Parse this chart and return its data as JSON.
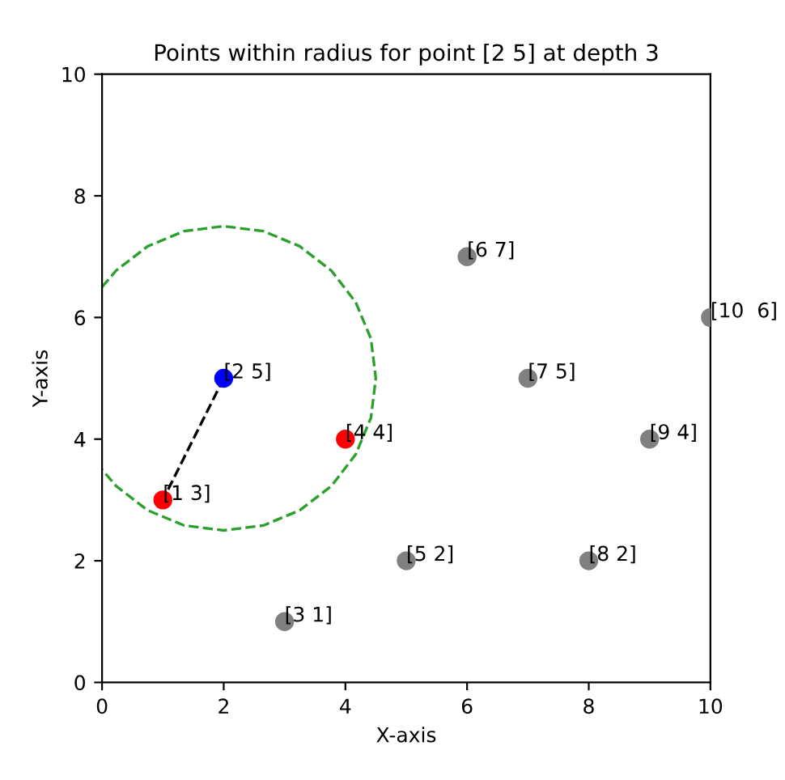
{
  "chart_data": {
    "type": "scatter",
    "title": "Points within radius for point [2 5] at depth 3",
    "xlabel": "X-axis",
    "ylabel": "Y-axis",
    "xlim": [
      0,
      10
    ],
    "ylim": [
      0,
      10
    ],
    "xticks": [
      0,
      2,
      4,
      6,
      8,
      10
    ],
    "yticks": [
      0,
      2,
      4,
      6,
      8,
      10
    ],
    "grid": false,
    "marker": "circle",
    "series": [
      {
        "color": "#808080",
        "x": [
          3,
          5,
          6,
          7,
          8,
          9,
          10
        ],
        "values": [
          1,
          2,
          7,
          5,
          2,
          4,
          6
        ]
      },
      {
        "color": "#ff0000",
        "x": [
          1,
          4
        ],
        "values": [
          3,
          4
        ]
      },
      {
        "color": "#0000ff",
        "x": [
          2
        ],
        "values": [
          5
        ]
      },
      {
        "type": "line",
        "color": "#2ca02c",
        "line_style": "dashed",
        "marker": "none",
        "x": [
          0,
          0.23,
          0.75,
          1.35,
          2,
          2.65,
          3.25,
          3.77,
          4.17,
          4.42,
          4.5,
          4.42,
          4.17,
          3.77,
          3.25,
          2.65,
          2,
          1.35,
          0.75,
          0.23,
          0
        ],
        "values": [
          6.5,
          6.77,
          7.17,
          7.42,
          7.5,
          7.42,
          7.17,
          6.77,
          6.25,
          5.65,
          5,
          4.35,
          3.75,
          3.23,
          2.83,
          2.58,
          2.5,
          2.58,
          2.83,
          3.23,
          3.5
        ]
      },
      {
        "type": "line",
        "color": "#000000",
        "line_style": "dashed",
        "marker": "none",
        "x": [
          2,
          1
        ],
        "values": [
          5,
          3
        ]
      }
    ],
    "annotations": [
      {
        "text": "[1 3]",
        "x": 1,
        "y": 3
      },
      {
        "text": "[2 5]",
        "x": 2,
        "y": 5
      },
      {
        "text": "[3 1]",
        "x": 3,
        "y": 1
      },
      {
        "text": "[4 4]",
        "x": 4,
        "y": 4
      },
      {
        "text": "[5 2]",
        "x": 5,
        "y": 2
      },
      {
        "text": "[6 7]",
        "x": 6,
        "y": 7
      },
      {
        "text": "[7 5]",
        "x": 7,
        "y": 5
      },
      {
        "text": "[8 2]",
        "x": 8,
        "y": 2
      },
      {
        "text": "[9 4]",
        "x": 9,
        "y": 4
      },
      {
        "text": "[10  6]",
        "x": 10,
        "y": 6
      }
    ]
  }
}
